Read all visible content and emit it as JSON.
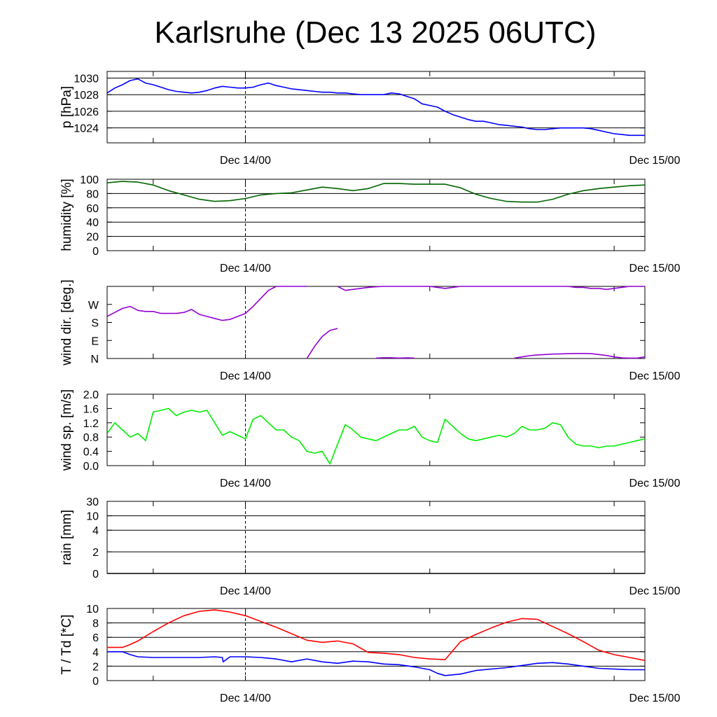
{
  "title": "Karlsruhe (Dec 13 2025 06UTC)",
  "colors": {
    "pressure": "#0000ff",
    "humidity": "#006400",
    "wind_dir": "#9400d3",
    "wind_speed": "#00ee00",
    "rain": "#000000",
    "temperature": "#ff0000",
    "dewpoint": "#0000ff"
  },
  "chart_data": [
    {
      "type": "line",
      "ylabel": "p [hPa]",
      "x_ticks": [
        "Dec 14/00",
        "Dec 15/00"
      ],
      "ylim": [
        1022.2,
        1030.8
      ],
      "y_ticks": [
        1024,
        1026,
        1028,
        1030
      ],
      "y_tick_labels": [
        "1024",
        "1026",
        "1028",
        "1030"
      ],
      "grid": true,
      "series": [
        {
          "color_key": "pressure",
          "x_hours": [
            0,
            1,
            2,
            3,
            4,
            5,
            6,
            7,
            8,
            9,
            10,
            11,
            12,
            13,
            14,
            15,
            16,
            17,
            18,
            19,
            20,
            21,
            22,
            23,
            24,
            25,
            26,
            27,
            28,
            29,
            30,
            31,
            32,
            33,
            34,
            35,
            36,
            37,
            38,
            39,
            40,
            41,
            42,
            43,
            44,
            45,
            46,
            47,
            48,
            49,
            50,
            51,
            52,
            53,
            54,
            55,
            56,
            57,
            58,
            59,
            60,
            61,
            62,
            63,
            64,
            65,
            66,
            67,
            68,
            69,
            70
          ],
          "values": [
            1028.2,
            1028.8,
            1029.2,
            1029.7,
            1029.9,
            1029.4,
            1029.2,
            1028.9,
            1028.6,
            1028.4,
            1028.3,
            1028.2,
            1028.3,
            1028.5,
            1028.8,
            1029.0,
            1028.9,
            1028.8,
            1028.8,
            1028.9,
            1029.2,
            1029.4,
            1029.1,
            1028.9,
            1028.7,
            1028.6,
            1028.5,
            1028.4,
            1028.3,
            1028.3,
            1028.2,
            1028.2,
            1028.1,
            1028.0,
            1028.0,
            1028.0,
            1028.0,
            1028.2,
            1028.1,
            1027.8,
            1027.5,
            1026.9,
            1026.7,
            1026.5,
            1026.0,
            1025.6,
            1025.3,
            1025.0,
            1024.8,
            1024.8,
            1024.6,
            1024.4,
            1024.3,
            1024.2,
            1024.1,
            1023.9,
            1023.8,
            1023.8,
            1023.9,
            1024.0,
            1024.0,
            1024.0,
            1024.0,
            1023.9,
            1023.7,
            1023.5,
            1023.3,
            1023.2,
            1023.1,
            1023.1,
            1023.1
          ]
        }
      ]
    },
    {
      "type": "line",
      "ylabel": "humidity [%]",
      "x_ticks": [
        "Dec 14/00",
        "Dec 15/00"
      ],
      "ylim": [
        0,
        100
      ],
      "y_ticks": [
        0,
        20,
        40,
        60,
        80,
        100
      ],
      "y_tick_labels": [
        "0",
        "20",
        "40",
        "60",
        "80",
        "100"
      ],
      "grid": true,
      "series": [
        {
          "color_key": "humidity",
          "x_hours": [
            0,
            2,
            4,
            6,
            8,
            10,
            12,
            14,
            16,
            18,
            20,
            22,
            24,
            26,
            28,
            30,
            32,
            34,
            36,
            38,
            40,
            42,
            44,
            46,
            48,
            50,
            52,
            54,
            56,
            58,
            60,
            62,
            64,
            66,
            68,
            70
          ],
          "values": [
            95,
            97,
            96,
            92,
            84,
            78,
            72,
            69,
            70,
            73,
            78,
            80,
            81,
            85,
            89,
            87,
            84,
            87,
            94,
            94,
            93,
            93,
            93,
            88,
            79,
            73,
            69,
            68,
            68,
            72,
            79,
            84,
            87,
            89,
            91,
            92
          ]
        }
      ]
    },
    {
      "type": "scatter",
      "ylabel": "wind dir. [deg.]",
      "x_ticks": [
        "Dec 14/00",
        "Dec 15/00"
      ],
      "ylim": [
        0,
        360
      ],
      "y_ticks": [
        0,
        90,
        180,
        270
      ],
      "y_tick_labels": [
        "N",
        "E",
        "S",
        "W"
      ],
      "grid": false,
      "series": [
        {
          "color_key": "wind_dir",
          "segments": [
            {
              "x_hours": [
                0,
                1,
                2,
                3,
                4,
                5,
                6,
                7,
                8,
                9,
                10,
                11,
                12,
                13,
                14,
                15,
                16,
                17,
                18,
                19,
                20,
                21,
                22,
                23,
                24,
                25,
                26
              ],
              "values": [
                210,
                230,
                250,
                260,
                240,
                235,
                235,
                225,
                225,
                225,
                230,
                245,
                220,
                210,
                200,
                190,
                195,
                210,
                225,
                260,
                300,
                340,
                360,
                360,
                360,
                360,
                360
              ]
            },
            {
              "x_hours": [
                26,
                27,
                28,
                29,
                30
              ],
              "values": [
                0,
                60,
                110,
                140,
                150
              ]
            },
            {
              "x_hours": [
                30,
                31,
                32,
                33,
                34,
                35,
                36,
                37,
                38,
                39,
                40,
                41,
                42,
                43,
                44,
                45,
                46,
                47,
                48,
                49,
                50,
                51,
                52,
                53,
                54,
                55,
                56,
                57,
                58,
                59,
                60,
                61,
                62,
                63,
                64,
                65,
                66,
                67,
                68,
                69,
                70
              ],
              "values": [
                360,
                340,
                345,
                350,
                355,
                358,
                360,
                360,
                360,
                360,
                360,
                360,
                360,
                355,
                350,
                355,
                360,
                360,
                360,
                360,
                360,
                360,
                360,
                360,
                360,
                360,
                360,
                360,
                360,
                360,
                360,
                355,
                355,
                350,
                350,
                345,
                350,
                355,
                360,
                360,
                360
              ]
            },
            {
              "x_hours": [
                35,
                36,
                37,
                38,
                39,
                40
              ],
              "values": [
                2,
                4,
                4,
                2,
                3,
                2
              ]
            },
            {
              "x_hours": [
                53,
                54,
                55,
                56,
                57,
                58,
                59,
                60,
                61,
                62,
                63,
                64,
                65,
                66,
                67,
                68,
                69,
                70
              ],
              "values": [
                2,
                8,
                14,
                18,
                20,
                22,
                23,
                24,
                25,
                25,
                24,
                20,
                15,
                8,
                3,
                2,
                2,
                8
              ]
            }
          ]
        }
      ]
    },
    {
      "type": "line",
      "ylabel": "wind sp. [m/s]",
      "x_ticks": [
        "Dec 14/00",
        "Dec 15/00"
      ],
      "ylim": [
        0,
        2.0
      ],
      "y_ticks": [
        0,
        0.4,
        0.8,
        1.2,
        1.6,
        2.0
      ],
      "y_tick_labels": [
        "0.0",
        "0.4",
        "0.8",
        "1.2",
        "1.6",
        "2.0"
      ],
      "grid": false,
      "series": [
        {
          "color_key": "wind_speed",
          "x_hours": [
            0,
            1,
            2,
            3,
            4,
            5,
            6,
            7,
            8,
            9,
            10,
            11,
            12,
            13,
            14,
            15,
            16,
            17,
            18,
            19,
            20,
            21,
            22,
            23,
            24,
            25,
            26,
            27,
            28,
            29,
            30,
            31,
            32,
            33,
            34,
            35,
            36,
            37,
            38,
            39,
            40,
            41,
            42,
            43,
            44,
            45,
            46,
            47,
            48,
            49,
            50,
            51,
            52,
            53,
            54,
            55,
            56,
            57,
            58,
            59,
            60,
            61,
            62,
            63,
            64,
            65,
            66,
            67,
            68,
            69,
            70
          ],
          "values": [
            0.9,
            1.2,
            1.0,
            0.8,
            0.9,
            0.7,
            1.5,
            1.55,
            1.6,
            1.4,
            1.5,
            1.55,
            1.5,
            1.55,
            1.2,
            0.85,
            0.95,
            0.85,
            0.75,
            1.3,
            1.4,
            1.2,
            1.0,
            1.0,
            0.8,
            0.7,
            0.4,
            0.35,
            0.4,
            0.05,
            0.6,
            1.15,
            1.0,
            0.8,
            0.75,
            0.7,
            0.8,
            0.9,
            1.0,
            1.0,
            1.1,
            0.8,
            0.7,
            0.65,
            1.3,
            1.1,
            0.9,
            0.75,
            0.7,
            0.75,
            0.8,
            0.85,
            0.8,
            0.9,
            1.1,
            1.0,
            1.0,
            1.05,
            1.2,
            1.15,
            0.8,
            0.6,
            0.55,
            0.55,
            0.5,
            0.55,
            0.55,
            0.6,
            0.65,
            0.7,
            0.75
          ]
        }
      ]
    },
    {
      "type": "line",
      "ylabel": "rain [mm]",
      "x_ticks": [
        "Dec 14/00",
        "Dec 15/00"
      ],
      "ylim": [
        0,
        30
      ],
      "y_ticks": [
        0,
        2,
        4,
        10,
        30
      ],
      "y_tick_labels": [
        "0",
        "2",
        "4",
        "10",
        "30"
      ],
      "grid": true,
      "series": [
        {
          "color_key": "rain",
          "x_hours": [
            0,
            70
          ],
          "values": [
            0,
            0
          ]
        }
      ]
    },
    {
      "type": "line",
      "ylabel": "T / Td [*C]",
      "x_ticks": [
        "Dec 14/00",
        "Dec 15/00"
      ],
      "ylim": [
        0,
        10
      ],
      "y_ticks": [
        0,
        2,
        4,
        6,
        8,
        10
      ],
      "y_tick_labels": [
        "0",
        "2",
        "4",
        "6",
        "8",
        "10"
      ],
      "grid": true,
      "series": [
        {
          "color_key": "temperature",
          "x_hours": [
            0,
            2,
            3,
            4,
            6,
            8,
            10,
            12,
            14,
            16,
            18,
            20,
            22,
            24,
            26,
            28,
            30,
            32,
            34,
            36,
            38,
            40,
            42,
            44,
            46,
            48,
            50,
            52,
            54,
            56,
            58,
            60,
            62,
            64,
            66,
            68,
            70
          ],
          "values": [
            4.6,
            4.6,
            5.0,
            5.5,
            6.8,
            8.0,
            9.0,
            9.6,
            9.8,
            9.5,
            9.0,
            8.2,
            7.4,
            6.5,
            5.6,
            5.3,
            5.5,
            5.1,
            3.9,
            3.8,
            3.6,
            3.2,
            3.0,
            2.9,
            5.4,
            6.4,
            7.3,
            8.1,
            8.6,
            8.5,
            7.5,
            6.5,
            5.4,
            4.2,
            3.6,
            3.2,
            2.8
          ]
        },
        {
          "color_key": "dewpoint",
          "x_hours": [
            0,
            2,
            3,
            4,
            6,
            8,
            10,
            12,
            14,
            15,
            15.1,
            16,
            18,
            20,
            22,
            24,
            26,
            28,
            30,
            32,
            34,
            36,
            38,
            40,
            42,
            43,
            44,
            46,
            48,
            50,
            52,
            54,
            56,
            58,
            60,
            62,
            64,
            66,
            68,
            70
          ],
          "values": [
            4.0,
            4.0,
            3.6,
            3.3,
            3.2,
            3.2,
            3.2,
            3.2,
            3.3,
            3.2,
            2.6,
            3.3,
            3.3,
            3.2,
            3.0,
            2.6,
            3.0,
            2.6,
            2.4,
            2.7,
            2.6,
            2.3,
            2.2,
            1.9,
            1.5,
            1.0,
            0.7,
            0.9,
            1.4,
            1.6,
            1.8,
            2.1,
            2.4,
            2.5,
            2.3,
            2.0,
            1.7,
            1.6,
            1.5,
            1.5
          ]
        }
      ]
    }
  ]
}
